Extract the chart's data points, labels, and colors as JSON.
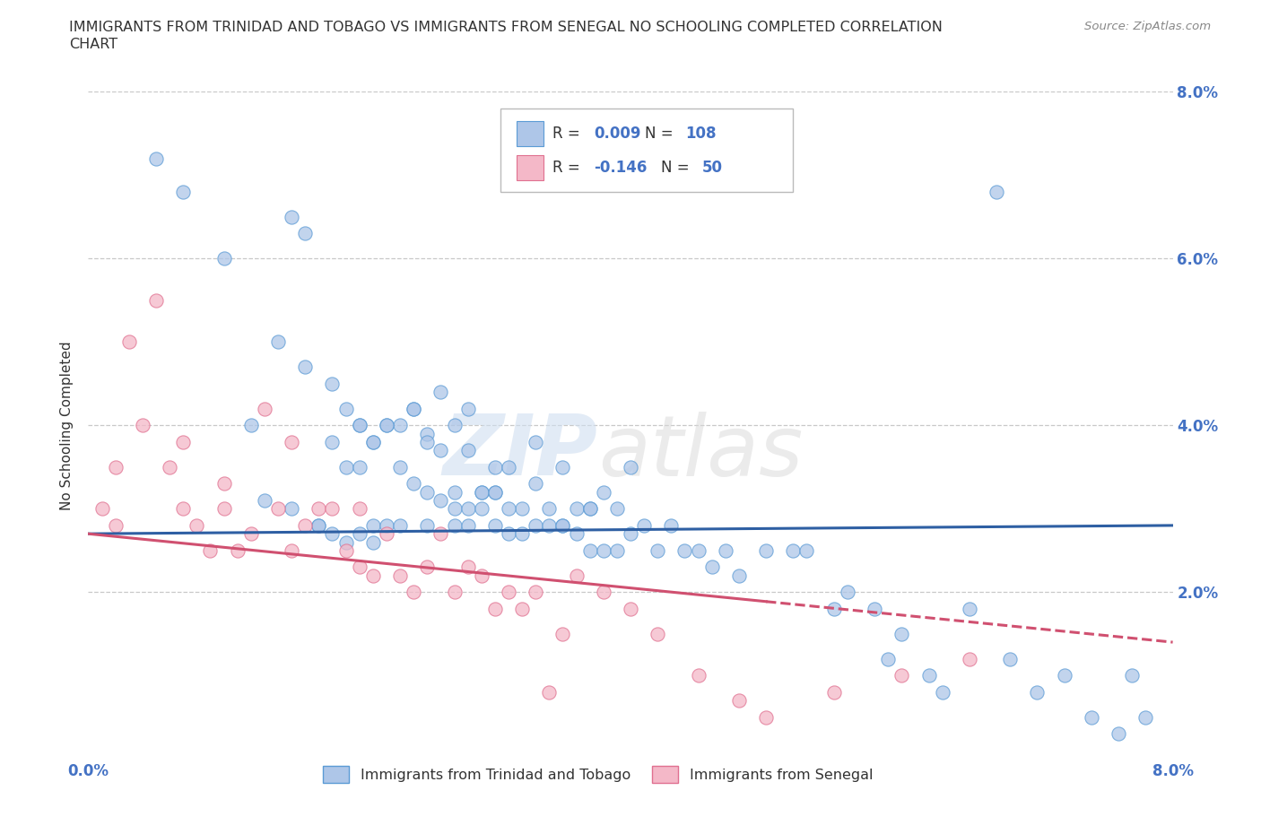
{
  "title_line1": "IMMIGRANTS FROM TRINIDAD AND TOBAGO VS IMMIGRANTS FROM SENEGAL NO SCHOOLING COMPLETED CORRELATION",
  "title_line2": "CHART",
  "source_text": "Source: ZipAtlas.com",
  "ylabel": "No Schooling Completed",
  "xlim": [
    0.0,
    0.08
  ],
  "ylim": [
    0.0,
    0.08
  ],
  "series1_color": "#aec6e8",
  "series1_edge_color": "#5b9bd5",
  "series2_color": "#f4b8c8",
  "series2_edge_color": "#e07090",
  "trend1_color": "#2e5fa3",
  "trend2_color": "#d05070",
  "trend1_y_start": 0.027,
  "trend1_y_end": 0.028,
  "trend2_y_start": 0.027,
  "trend2_y_end": 0.014,
  "legend_R1": "0.009",
  "legend_N1": "108",
  "legend_R2": "-0.146",
  "legend_N2": "50",
  "legend_label1": "Immigrants from Trinidad and Tobago",
  "legend_label2": "Immigrants from Senegal",
  "watermark_text": "ZIPatlas",
  "background_color": "#ffffff",
  "grid_color": "#c8c8c8",
  "axis_label_color": "#4472c4",
  "text_color": "#333333",
  "series1_x": [
    0.005,
    0.007,
    0.01,
    0.012,
    0.013,
    0.015,
    0.015,
    0.016,
    0.017,
    0.017,
    0.018,
    0.018,
    0.019,
    0.019,
    0.02,
    0.02,
    0.02,
    0.02,
    0.021,
    0.021,
    0.021,
    0.022,
    0.022,
    0.023,
    0.023,
    0.024,
    0.024,
    0.025,
    0.025,
    0.025,
    0.026,
    0.026,
    0.027,
    0.027,
    0.027,
    0.028,
    0.028,
    0.028,
    0.029,
    0.029,
    0.03,
    0.03,
    0.03,
    0.031,
    0.031,
    0.032,
    0.032,
    0.033,
    0.033,
    0.034,
    0.035,
    0.035,
    0.036,
    0.036,
    0.037,
    0.037,
    0.038,
    0.038,
    0.039,
    0.04,
    0.04,
    0.041,
    0.042,
    0.043,
    0.044,
    0.045,
    0.046,
    0.047,
    0.048,
    0.05,
    0.052,
    0.053,
    0.055,
    0.056,
    0.058,
    0.059,
    0.06,
    0.062,
    0.063,
    0.065,
    0.067,
    0.068,
    0.07,
    0.072,
    0.074,
    0.076,
    0.077,
    0.078,
    0.014,
    0.016,
    0.018,
    0.019,
    0.021,
    0.022,
    0.023,
    0.024,
    0.025,
    0.026,
    0.027,
    0.028,
    0.029,
    0.03,
    0.031,
    0.033,
    0.034,
    0.035,
    0.037,
    0.039
  ],
  "series1_y": [
    0.072,
    0.068,
    0.06,
    0.04,
    0.031,
    0.065,
    0.03,
    0.063,
    0.028,
    0.028,
    0.027,
    0.038,
    0.026,
    0.035,
    0.04,
    0.04,
    0.027,
    0.035,
    0.038,
    0.028,
    0.026,
    0.04,
    0.028,
    0.028,
    0.04,
    0.033,
    0.042,
    0.032,
    0.028,
    0.039,
    0.031,
    0.044,
    0.028,
    0.03,
    0.04,
    0.028,
    0.03,
    0.042,
    0.03,
    0.032,
    0.035,
    0.028,
    0.032,
    0.035,
    0.027,
    0.027,
    0.03,
    0.028,
    0.038,
    0.03,
    0.028,
    0.035,
    0.027,
    0.03,
    0.025,
    0.03,
    0.032,
    0.025,
    0.03,
    0.027,
    0.035,
    0.028,
    0.025,
    0.028,
    0.025,
    0.025,
    0.023,
    0.025,
    0.022,
    0.025,
    0.025,
    0.025,
    0.018,
    0.02,
    0.018,
    0.012,
    0.015,
    0.01,
    0.008,
    0.018,
    0.068,
    0.012,
    0.008,
    0.01,
    0.005,
    0.003,
    0.01,
    0.005,
    0.05,
    0.047,
    0.045,
    0.042,
    0.038,
    0.04,
    0.035,
    0.042,
    0.038,
    0.037,
    0.032,
    0.037,
    0.032,
    0.032,
    0.03,
    0.033,
    0.028,
    0.028,
    0.03,
    0.025
  ],
  "series2_x": [
    0.001,
    0.002,
    0.002,
    0.003,
    0.004,
    0.005,
    0.006,
    0.007,
    0.007,
    0.008,
    0.009,
    0.01,
    0.01,
    0.011,
    0.012,
    0.013,
    0.014,
    0.015,
    0.015,
    0.016,
    0.017,
    0.018,
    0.019,
    0.02,
    0.02,
    0.021,
    0.022,
    0.023,
    0.024,
    0.025,
    0.026,
    0.027,
    0.028,
    0.029,
    0.03,
    0.031,
    0.032,
    0.033,
    0.034,
    0.035,
    0.036,
    0.038,
    0.04,
    0.042,
    0.045,
    0.048,
    0.05,
    0.055,
    0.06,
    0.065
  ],
  "series2_y": [
    0.03,
    0.028,
    0.035,
    0.05,
    0.04,
    0.055,
    0.035,
    0.03,
    0.038,
    0.028,
    0.025,
    0.033,
    0.03,
    0.025,
    0.027,
    0.042,
    0.03,
    0.025,
    0.038,
    0.028,
    0.03,
    0.03,
    0.025,
    0.023,
    0.03,
    0.022,
    0.027,
    0.022,
    0.02,
    0.023,
    0.027,
    0.02,
    0.023,
    0.022,
    0.018,
    0.02,
    0.018,
    0.02,
    0.008,
    0.015,
    0.022,
    0.02,
    0.018,
    0.015,
    0.01,
    0.007,
    0.005,
    0.008,
    0.01,
    0.012
  ]
}
